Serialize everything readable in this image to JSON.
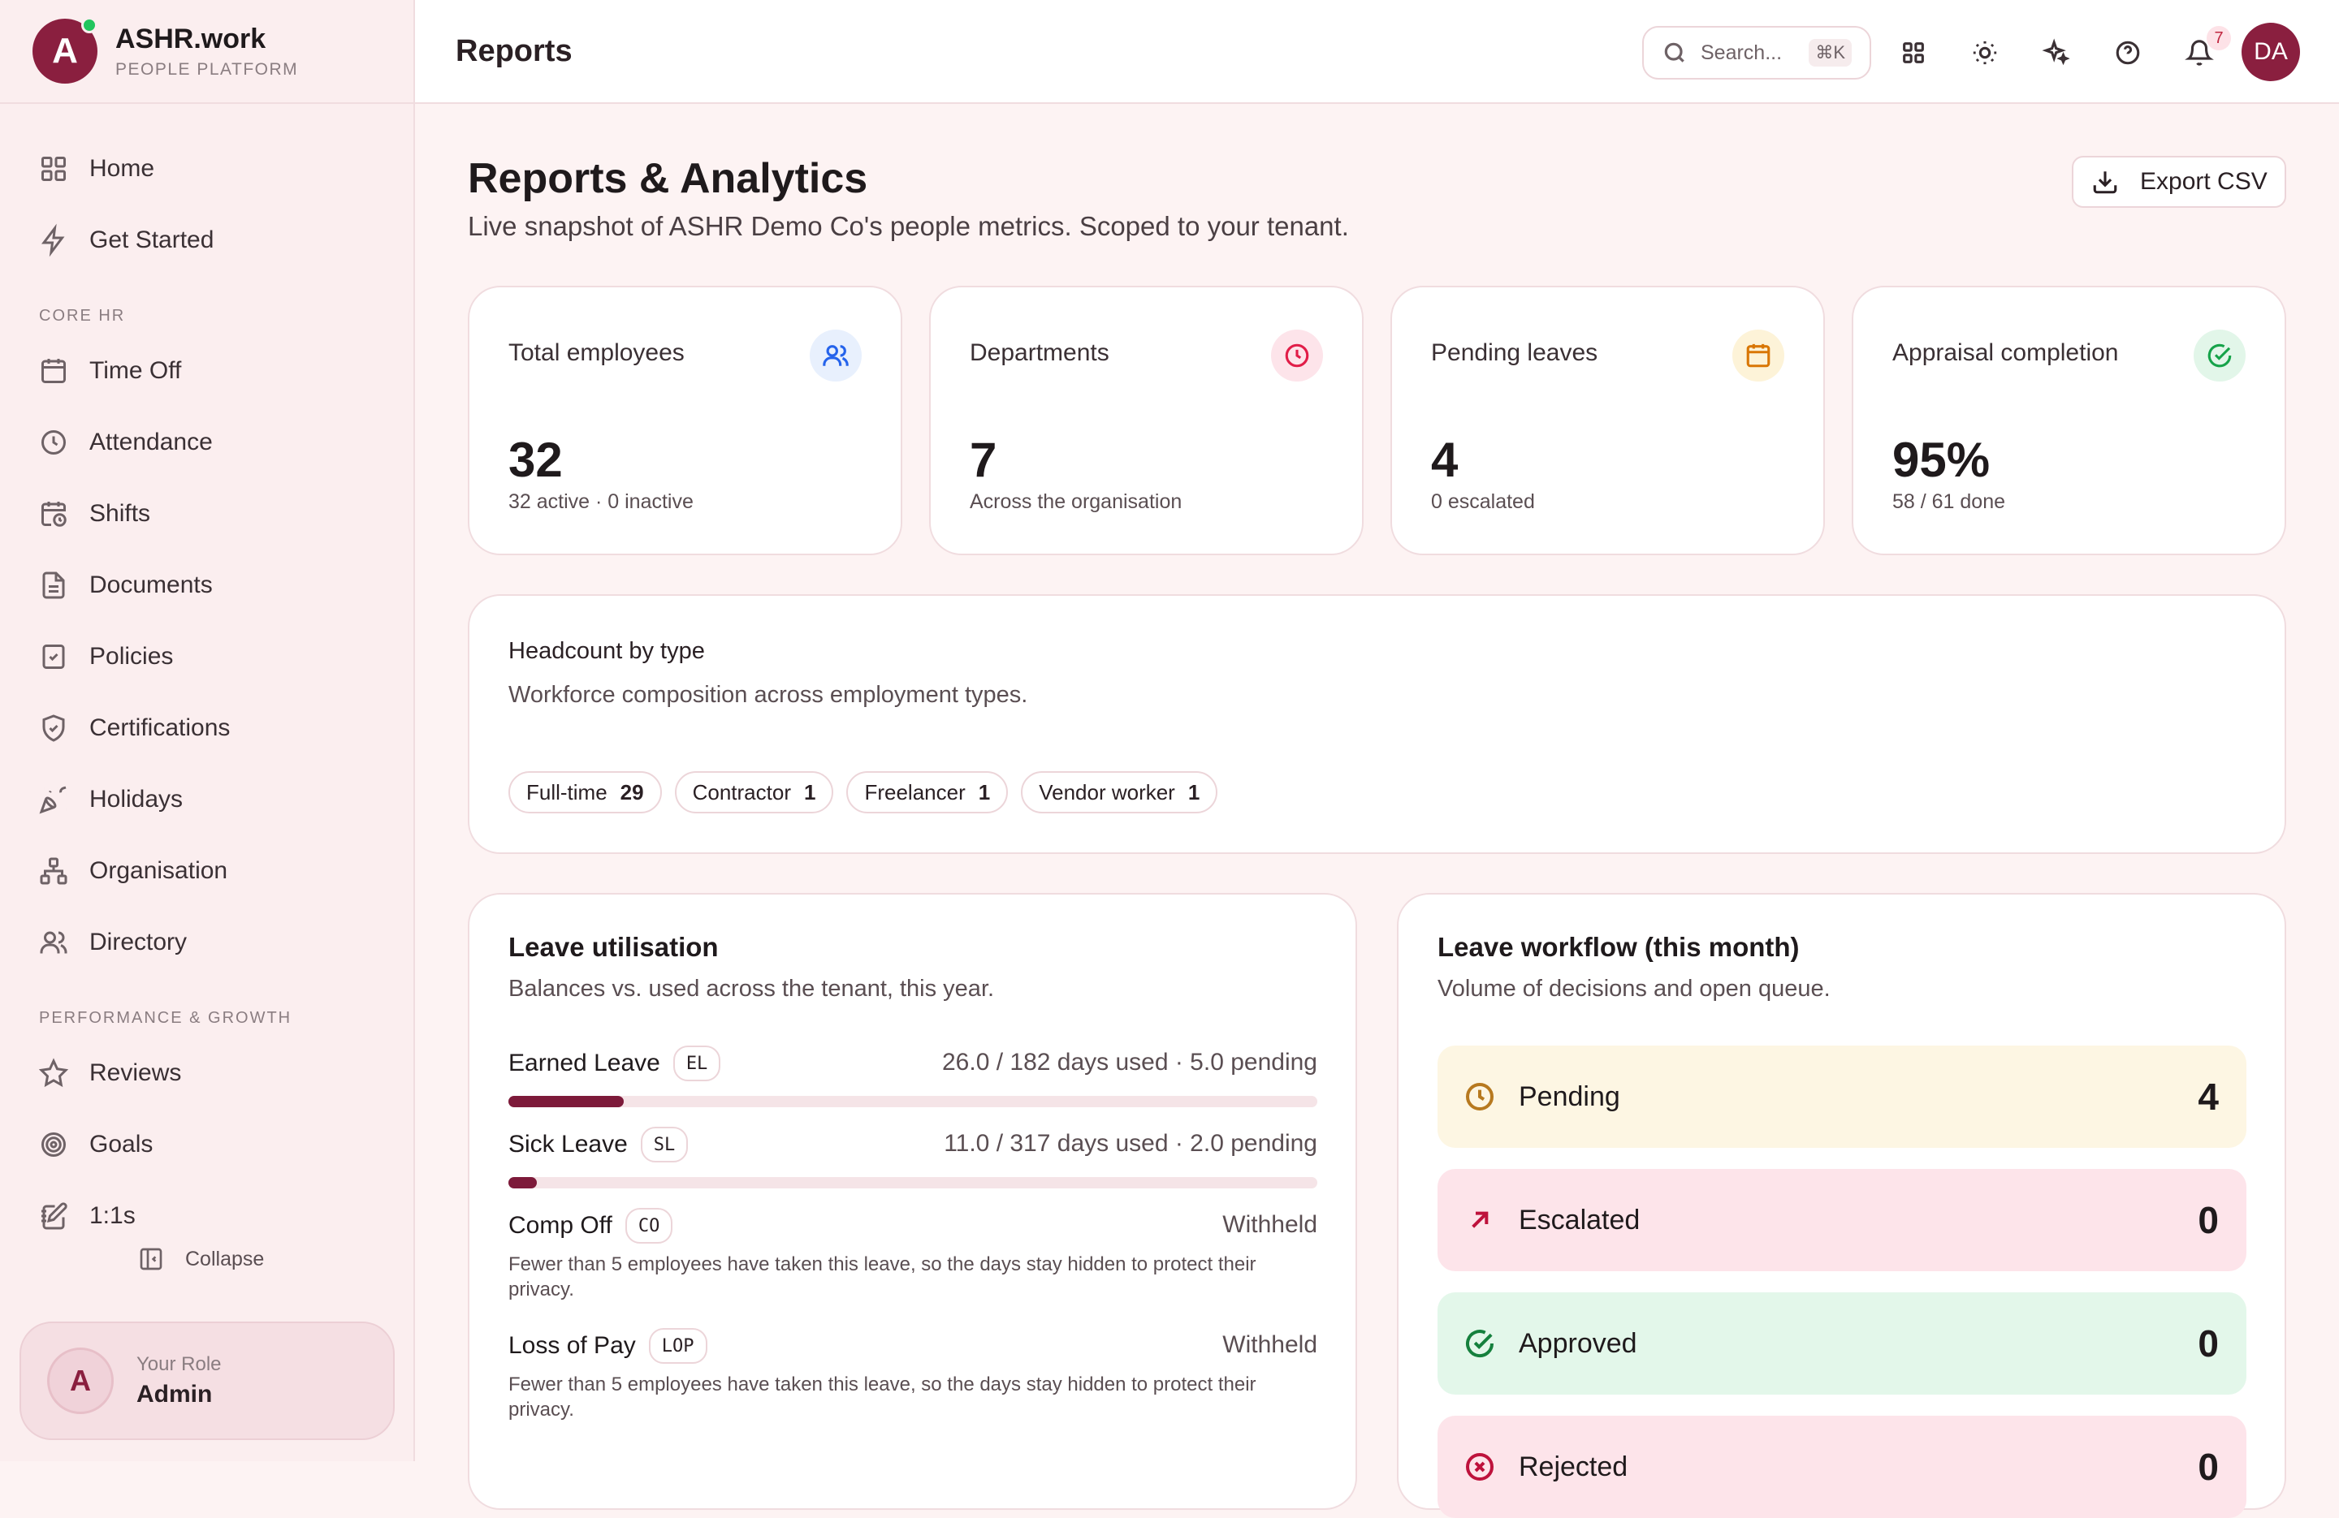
{
  "brand": {
    "name": "ASHR.work",
    "subtitle": "PEOPLE PLATFORM",
    "logo_letter": "A"
  },
  "sidebar": {
    "top_items": [
      {
        "label": "Home",
        "icon": "grid-icon"
      },
      {
        "label": "Get Started",
        "icon": "bolt-icon"
      }
    ],
    "sections": [
      {
        "title": "CORE HR",
        "items": [
          {
            "label": "Time Off",
            "icon": "calendar-icon"
          },
          {
            "label": "Attendance",
            "icon": "clock-icon"
          },
          {
            "label": "Shifts",
            "icon": "calendar-clock-icon"
          },
          {
            "label": "Documents",
            "icon": "document-icon"
          },
          {
            "label": "Policies",
            "icon": "clipboard-check-icon"
          },
          {
            "label": "Certifications",
            "icon": "shield-check-icon"
          },
          {
            "label": "Holidays",
            "icon": "party-icon"
          },
          {
            "label": "Organisation",
            "icon": "org-chart-icon"
          },
          {
            "label": "Directory",
            "icon": "users-icon"
          }
        ]
      },
      {
        "title": "PERFORMANCE & GROWTH",
        "items": [
          {
            "label": "Reviews",
            "icon": "star-icon"
          },
          {
            "label": "Goals",
            "icon": "target-icon"
          },
          {
            "label": "1:1s",
            "icon": "notebook-pen-icon"
          }
        ]
      }
    ],
    "collapse_label": "Collapse",
    "role": {
      "label": "Your Role",
      "value": "Admin",
      "avatar_letter": "A"
    }
  },
  "header": {
    "title": "Reports",
    "search_placeholder": "Search...",
    "search_shortcut": "⌘K",
    "notification_count": "7",
    "avatar_initials": "DA"
  },
  "main": {
    "title": "Reports & Analytics",
    "subtitle": "Live snapshot of ASHR Demo Co's people metrics. Scoped to your tenant.",
    "export_label": "Export CSV",
    "stats": [
      {
        "label": "Total employees",
        "value": "32",
        "sub": "32 active · 0 inactive",
        "icon": "users-icon",
        "color": "#2563eb",
        "bg": "#e8f0fd"
      },
      {
        "label": "Departments",
        "value": "7",
        "sub": "Across the organisation",
        "icon": "clock-icon",
        "color": "#e11d48",
        "bg": "#fde4ea"
      },
      {
        "label": "Pending leaves",
        "value": "4",
        "sub": "0 escalated",
        "icon": "calendar-icon",
        "color": "#d97706",
        "bg": "#fdf3d8"
      },
      {
        "label": "Appraisal completion",
        "value": "95%",
        "sub": "58 / 61 done",
        "icon": "check-circle-icon",
        "color": "#16a34a",
        "bg": "#e2f6e9"
      }
    ],
    "headcount": {
      "title": "Headcount by type",
      "description": "Workforce composition across employment types.",
      "chips": [
        {
          "label": "Full-time",
          "count": "29"
        },
        {
          "label": "Contractor",
          "count": "1"
        },
        {
          "label": "Freelancer",
          "count": "1"
        },
        {
          "label": "Vendor worker",
          "count": "1"
        }
      ]
    },
    "leave_utilisation": {
      "title": "Leave utilisation",
      "description": "Balances vs. used across the tenant, this year.",
      "rows": [
        {
          "name": "Earned Leave",
          "code": "EL",
          "status": "26.0 / 182 days used · 5.0 pending",
          "used_fraction": 0.1429
        },
        {
          "name": "Sick Leave",
          "code": "SL",
          "status": "11.0 / 317 days used · 2.0 pending",
          "used_fraction": 0.0347
        },
        {
          "name": "Comp Off",
          "code": "CO",
          "status": "Withheld",
          "note": "Fewer than 5 employees have taken this leave, so the days stay hidden to protect their privacy."
        },
        {
          "name": "Loss of Pay",
          "code": "LOP",
          "status": "Withheld",
          "note": "Fewer than 5 employees have taken this leave, so the days stay hidden to protect their privacy."
        }
      ]
    },
    "leave_workflow": {
      "title": "Leave workflow (this month)",
      "description": "Volume of decisions and open queue.",
      "items": [
        {
          "label": "Pending",
          "count": "4",
          "icon": "clock-icon",
          "bg": "#fdf6e3",
          "color": "#b7791f"
        },
        {
          "label": "Escalated",
          "count": "0",
          "icon": "arrow-up-right-icon",
          "bg": "#fde4ea",
          "color": "#be123c"
        },
        {
          "label": "Approved",
          "count": "0",
          "icon": "check-circle-icon",
          "bg": "#e3f7ea",
          "color": "#15803d"
        },
        {
          "label": "Rejected",
          "count": "0",
          "icon": "x-circle-icon",
          "bg": "#fde4ea",
          "color": "#be123c"
        }
      ]
    }
  }
}
